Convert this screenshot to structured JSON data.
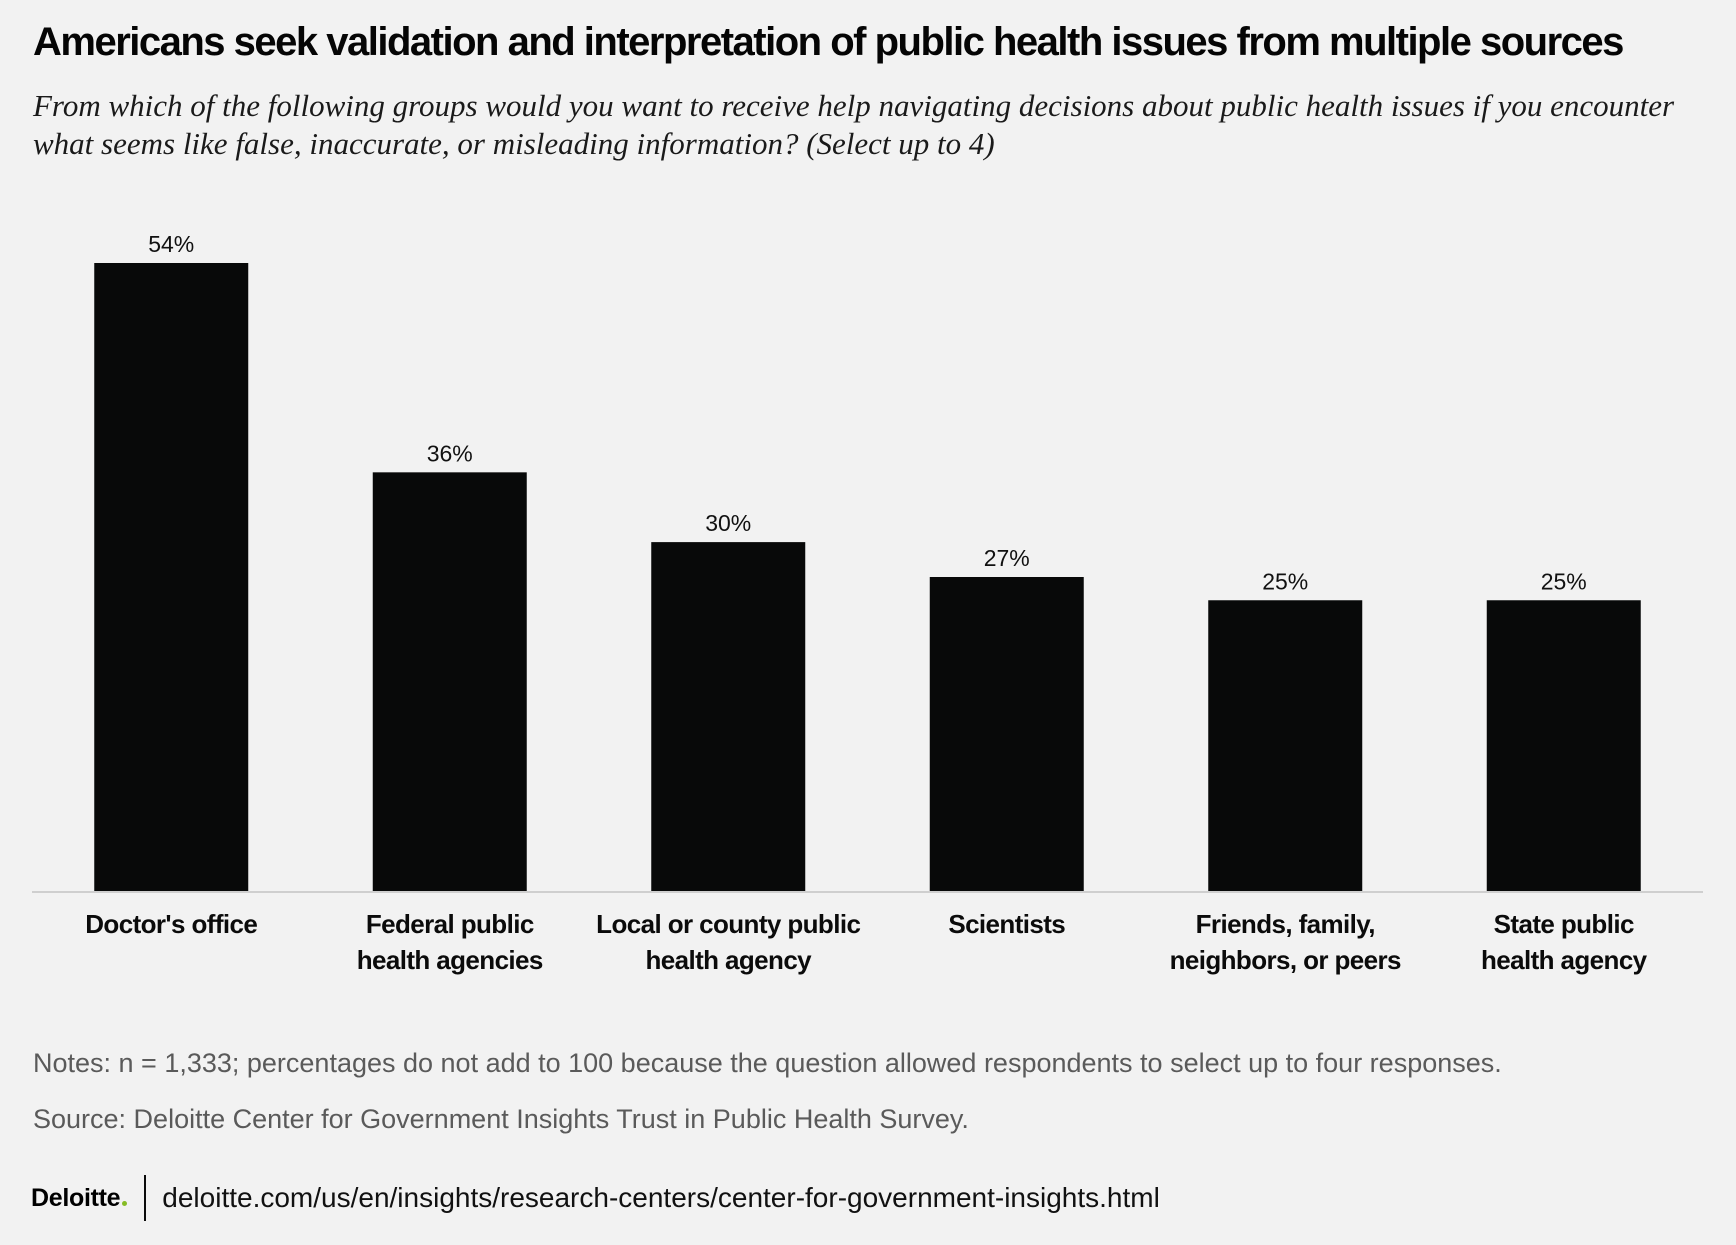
{
  "header": {
    "title": "Americans seek validation and interpretation of public health issues from multiple sources",
    "subtitle": "From which of the following groups would you want to receive help navigating decisions about public health issues if you encounter what seems like false, inaccurate, or misleading information? (Select up to 4)"
  },
  "chart_data": {
    "type": "bar",
    "categories": [
      [
        "Doctor's office"
      ],
      [
        "Federal public",
        "health agencies"
      ],
      [
        "Local or county public",
        "health agency"
      ],
      [
        "Scientists"
      ],
      [
        "Friends, family,",
        "neighbors, or peers"
      ],
      [
        "State public",
        "health agency"
      ]
    ],
    "values": [
      54,
      36,
      30,
      27,
      25,
      25
    ],
    "value_labels": [
      "54%",
      "36%",
      "30%",
      "27%",
      "25%",
      "25%"
    ],
    "unit": "%",
    "ylim": [
      0,
      54
    ],
    "grid": false,
    "legend": "none",
    "bar_color": "#080909",
    "axis_color": "#cfcfcf"
  },
  "footer": {
    "notes": "Notes: n = 1,333; percentages do not add to 100 because the question allowed respondents to select up to four responses.",
    "source": "Source: Deloitte Center for Government Insights Trust in Public Health Survey.",
    "logo_text": "Deloitte",
    "url": "deloitte.com/us/en/insights/research-centers/center-for-government-insights.html",
    "logo_dot_color": "#86bc25"
  }
}
